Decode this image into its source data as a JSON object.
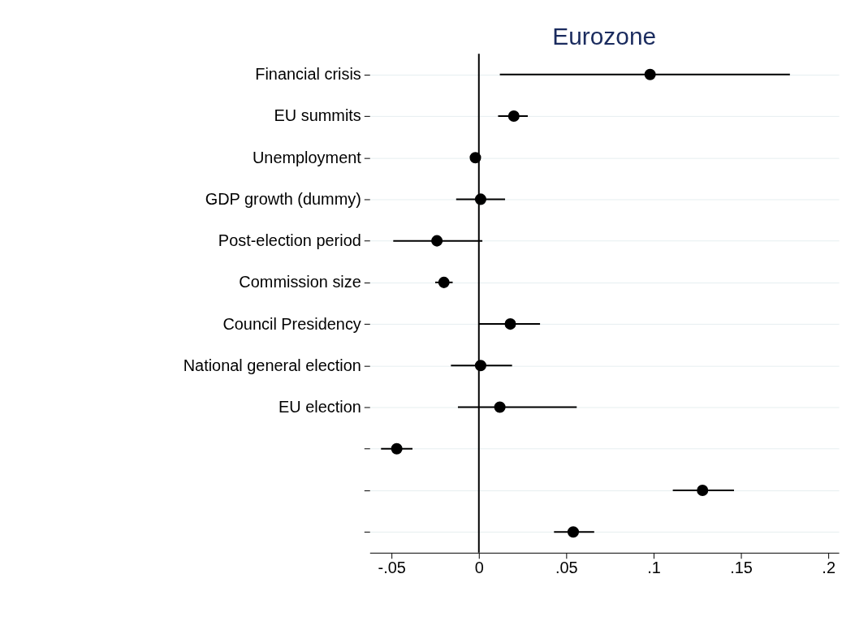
{
  "chart_data": {
    "type": "scatter",
    "title": "Eurozone",
    "orientation": "horizontal",
    "categories": [
      "Financial crisis",
      "EU summits",
      "Unemployment",
      "GDP growth (dummy)",
      "Post-election period",
      "Commission size",
      "Council Presidency",
      "National general election",
      "EU election",
      null,
      null,
      null
    ],
    "series": [
      {
        "color": "#000000",
        "values": [
          0.098,
          0.02,
          -0.002,
          0.001,
          -0.024,
          -0.02,
          0.018,
          0.001,
          0.012,
          -0.047,
          0.128,
          0.054
        ],
        "errors": [
          [
            0.012,
            0.178
          ],
          [
            0.011,
            0.028
          ],
          null,
          [
            -0.013,
            0.015
          ],
          [
            -0.049,
            0.002
          ],
          [
            -0.025,
            -0.015
          ],
          [
            0.0,
            0.035
          ],
          [
            -0.016,
            0.019
          ],
          [
            -0.012,
            0.056
          ],
          [
            -0.056,
            -0.038
          ],
          [
            0.111,
            0.146
          ],
          [
            0.043,
            0.066
          ]
        ]
      }
    ],
    "xlim": [
      -0.0625,
      0.206
    ],
    "xticks": [
      {
        "value": -0.05,
        "label": "-.05"
      },
      {
        "value": 0,
        "label": "0"
      },
      {
        "value": 0.05,
        "label": ".05"
      },
      {
        "value": 0.1,
        "label": ".1"
      },
      {
        "value": 0.15,
        "label": ".15"
      },
      {
        "value": 0.2,
        "label": ".2"
      }
    ],
    "ref_lines": [
      {
        "axis": "x",
        "value": 0,
        "label": null,
        "color": "#000000"
      }
    ],
    "grid": "y",
    "marker": "circle"
  }
}
